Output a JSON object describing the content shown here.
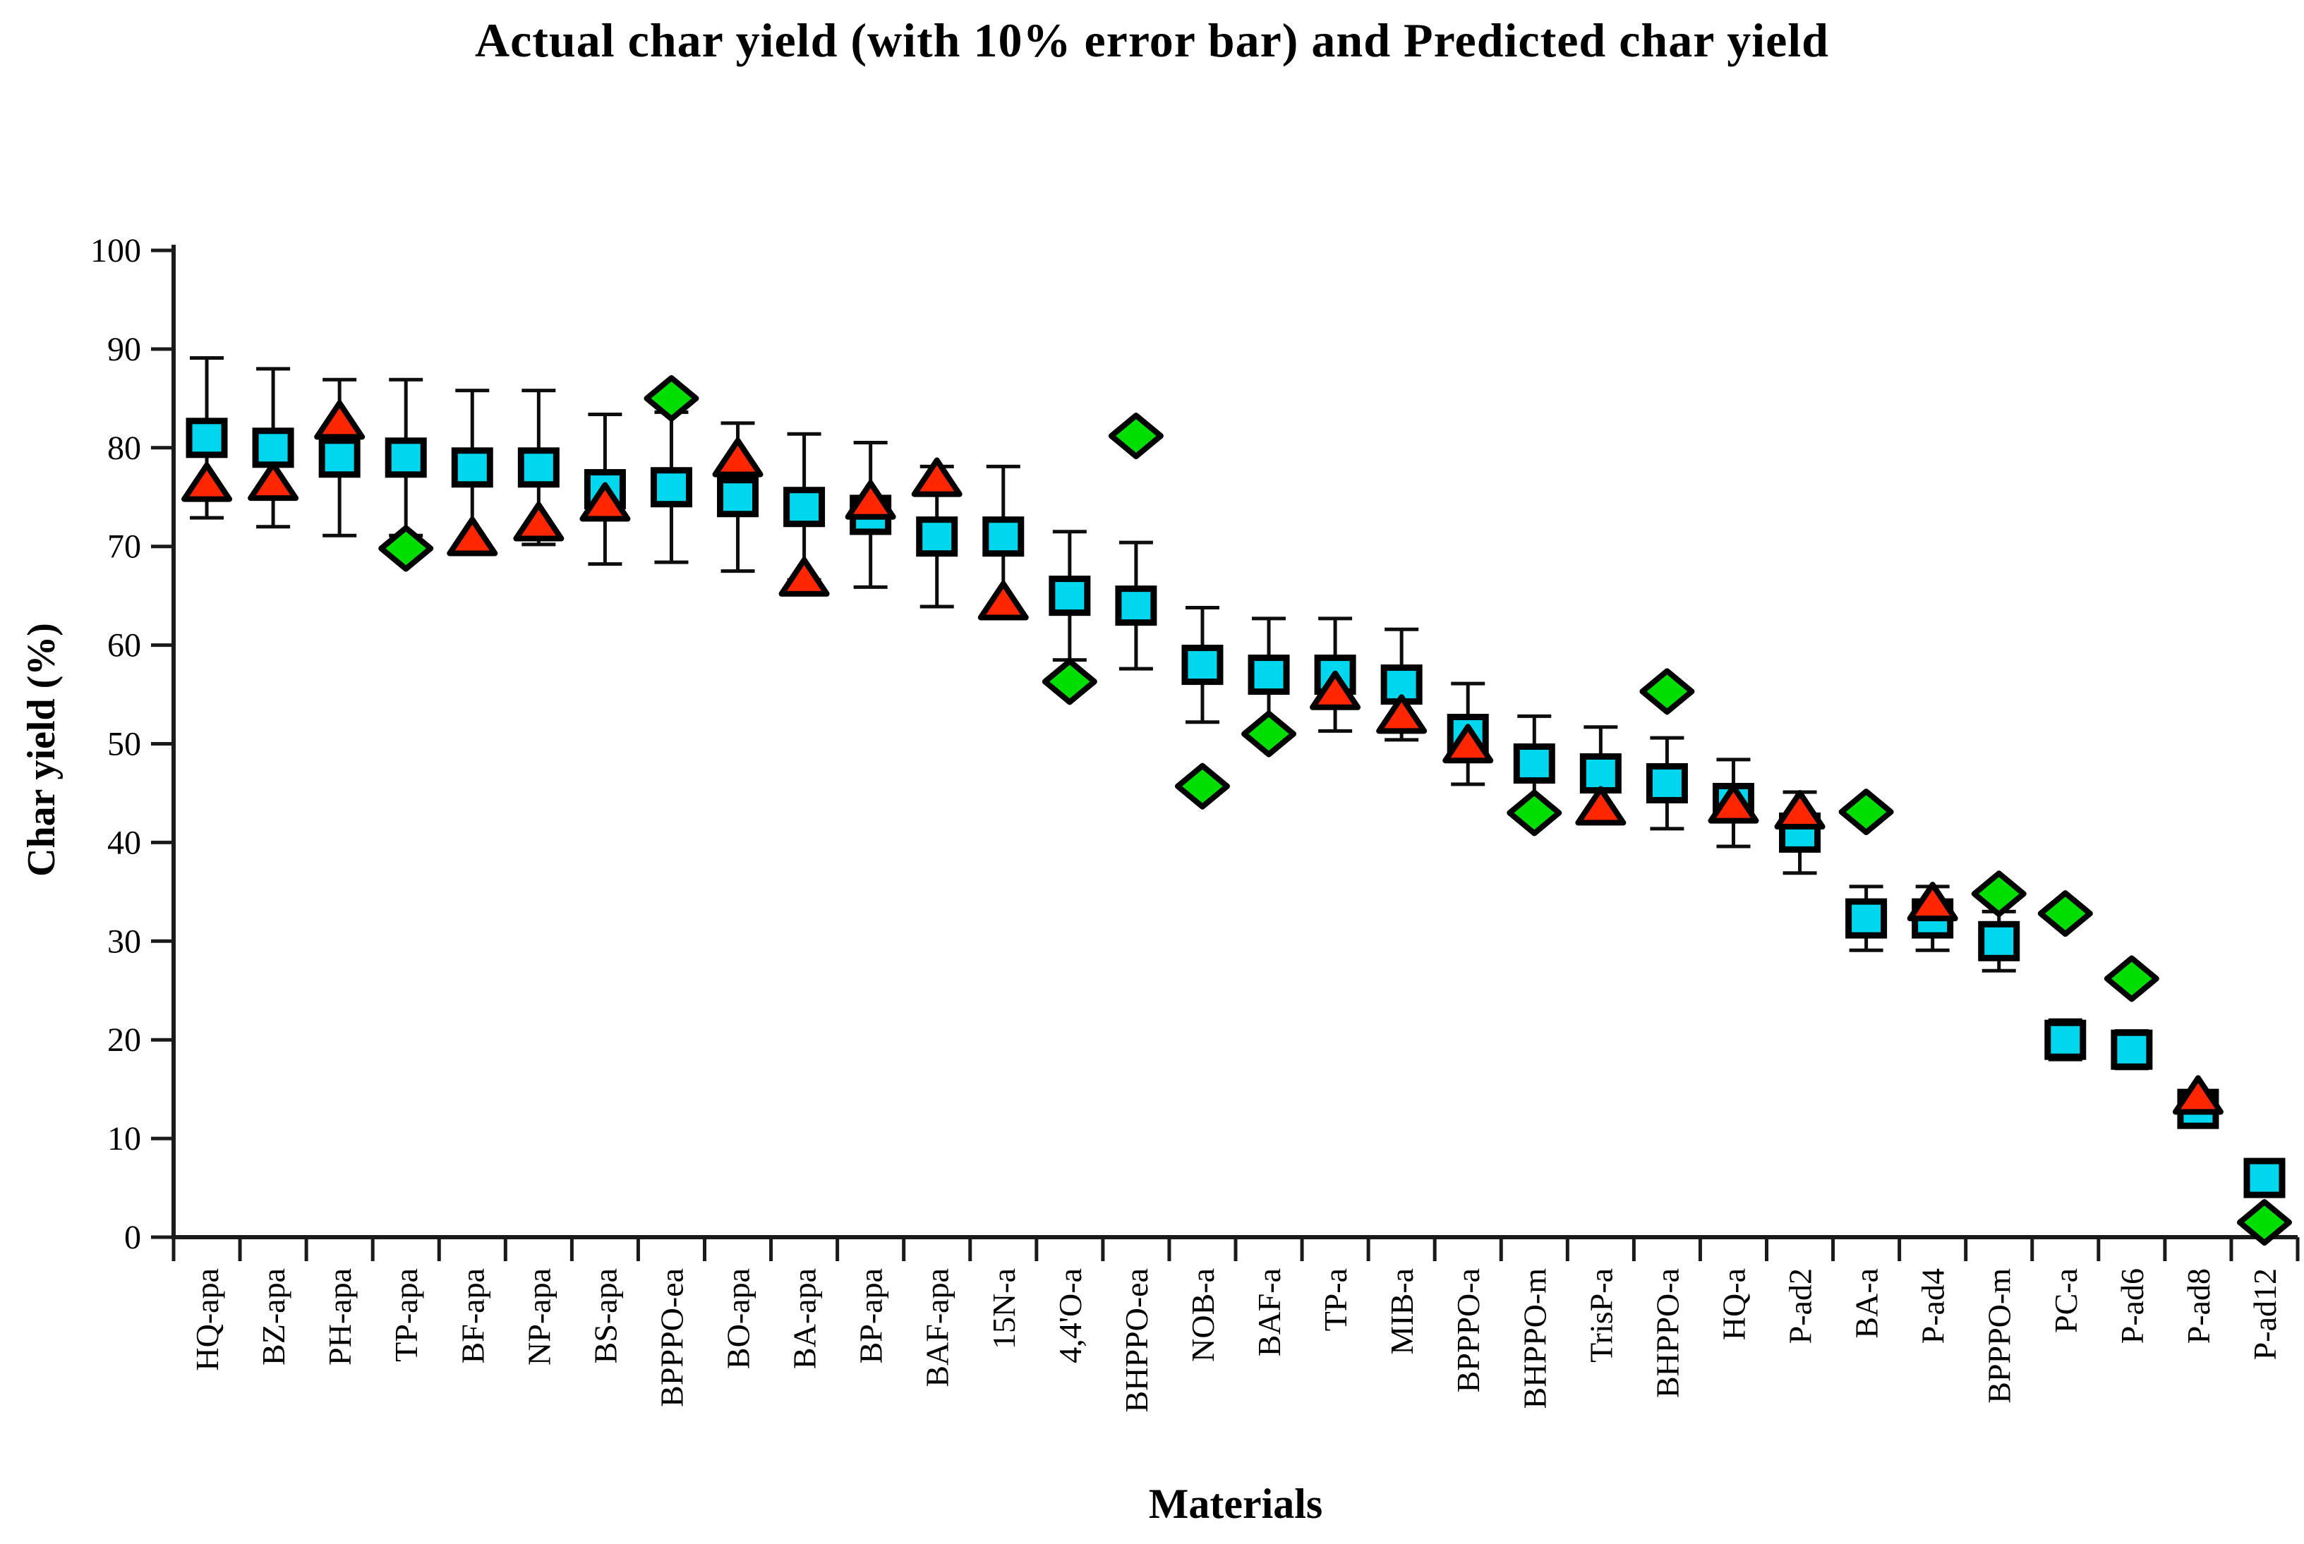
{
  "chart_data": {
    "type": "scatter",
    "title": "Actual char yield (with 10% error bar) and Predicted char yield",
    "xlabel": "Materials",
    "ylabel": "Char yield (%)",
    "ylim": [
      0,
      100
    ],
    "yticks": [
      0,
      10,
      20,
      30,
      40,
      50,
      60,
      70,
      80,
      90,
      100
    ],
    "grid": false,
    "legend": "none",
    "error_bar_percent": 10,
    "series_info": [
      {
        "name": "Actual char yield",
        "marker": "square",
        "fill": "#00d6ee",
        "stroke": "#000000",
        "has_error_bars": true
      },
      {
        "name": "Predicted char yield",
        "marker": "triangle",
        "fill": "#ff2600",
        "stroke": "#000000",
        "has_error_bars": false
      },
      {
        "name": "Predicted char yield",
        "marker": "diamond",
        "fill": "#00de00",
        "stroke": "#000000",
        "has_error_bars": false
      }
    ],
    "categories": [
      "HQ-apa",
      "BZ-apa",
      "PH-apa",
      "TP-apa",
      "BF-apa",
      "NP-apa",
      "BS-apa",
      "BPPPO-ea",
      "BO-apa",
      "BA-apa",
      "BP-apa",
      "BAF-apa",
      "15N-a",
      "4,4'O-a",
      "BHPPO-ea",
      "NOB-a",
      "BAF-a",
      "TP-a",
      "MIB-a",
      "BPPPO-a",
      "BHPPO-m",
      "TrisP-a",
      "BHPPO-a",
      "HQ-a",
      "P-ad2",
      "BA-a",
      "P-ad4",
      "BPPPO-m",
      "PC-a",
      "P-ad6",
      "P-ad8",
      "P-ad12"
    ],
    "series": [
      {
        "name": "actual_square",
        "values": [
          81,
          80,
          79,
          79,
          78,
          78,
          75.8,
          76,
          75,
          74,
          73.2,
          71,
          71,
          65,
          64,
          58,
          57,
          57,
          56,
          51,
          48,
          47,
          46,
          44,
          41,
          32.3,
          32.3,
          30,
          20,
          19,
          13,
          6
        ]
      },
      {
        "name": "predicted_triangle",
        "values": [
          76.3,
          76.4,
          82.6,
          null,
          70.8,
          72.3,
          74.3,
          null,
          78.8,
          66.7,
          74.5,
          76.8,
          64.3,
          null,
          null,
          null,
          null,
          55.2,
          52.8,
          49.8,
          null,
          43.5,
          null,
          43.7,
          43.1,
          null,
          33.8,
          null,
          null,
          null,
          14.2,
          null
        ]
      },
      {
        "name": "predicted_diamond",
        "values": [
          null,
          null,
          null,
          69.8,
          null,
          null,
          null,
          85,
          null,
          null,
          null,
          null,
          null,
          56.3,
          81.2,
          45.7,
          51,
          null,
          null,
          null,
          43,
          null,
          55.3,
          null,
          null,
          43.1,
          null,
          34.8,
          32.8,
          26.2,
          null,
          1.5
        ]
      }
    ]
  },
  "colors": {
    "axis": "#1a1a1a",
    "error_bar": "#0d0d0d",
    "square_fill": "#00d6ee",
    "triangle_fill": "#ff2600",
    "diamond_fill": "#00de00",
    "marker_stroke": "#000000",
    "text": "#000000"
  }
}
